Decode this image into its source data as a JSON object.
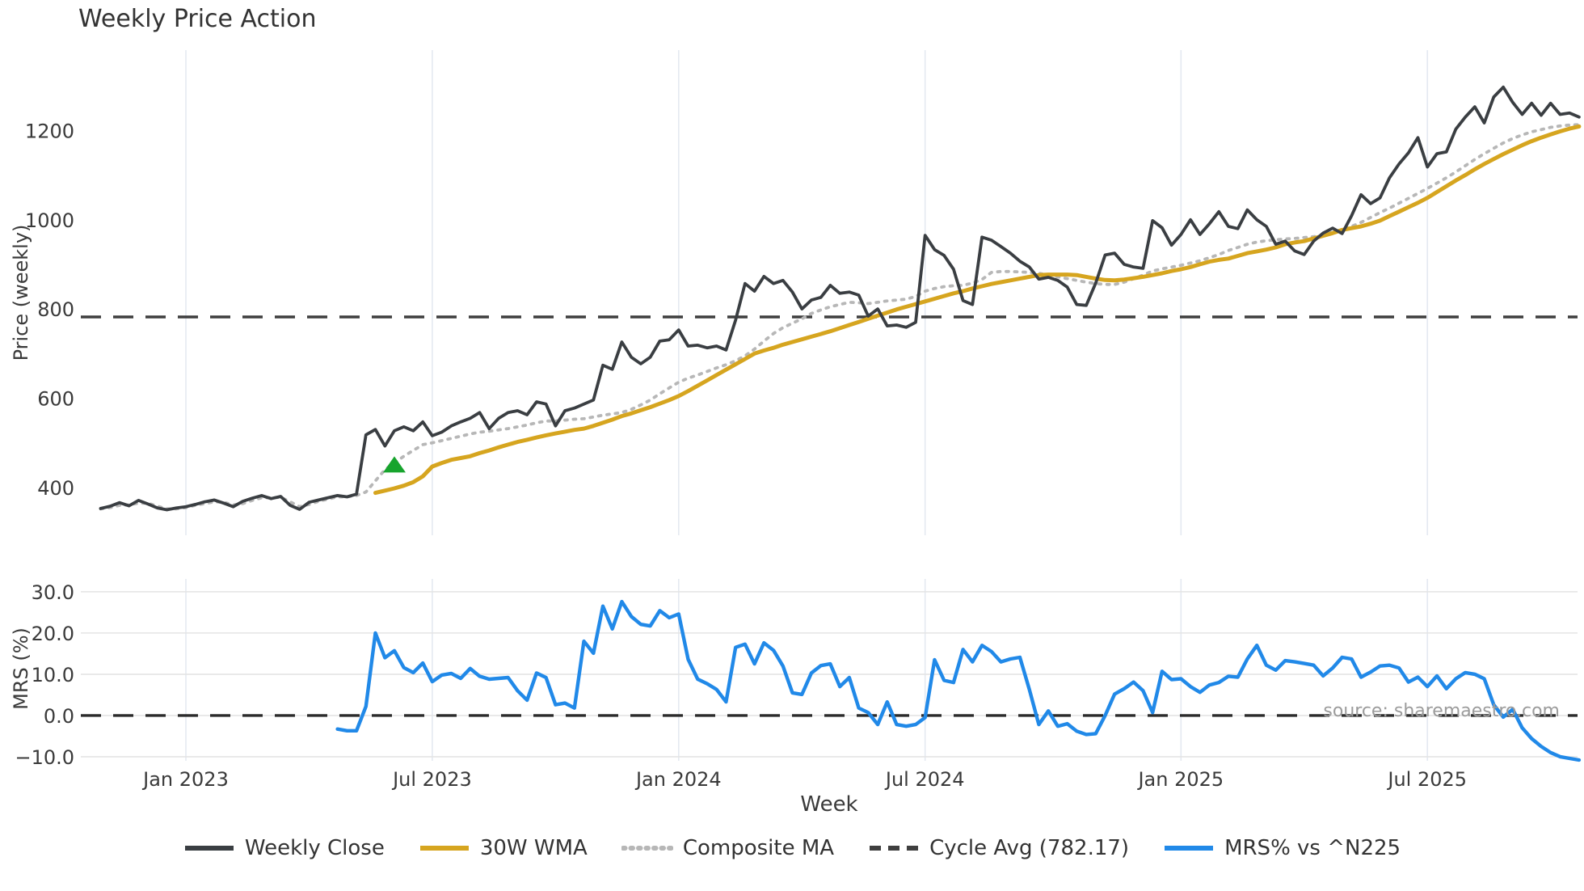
{
  "title": "Weekly Price Action",
  "source_note": "source: sharemaestro.com",
  "colors": {
    "close": "#3a3e42",
    "wma": "#d6a51f",
    "composite": "#b7b7b7",
    "cycle_avg": "#3f3f3f",
    "mrs": "#2189e8",
    "buy_marker": "#17a42d",
    "grid_vertical": "#e4e9f1",
    "grid_horizontal": "#e4e4e4",
    "tick_text": "#3a3a3a",
    "source_text": "#9b9b9b"
  },
  "chart_data": {
    "type": "line",
    "title": "Weekly Price Action",
    "x": {
      "label": "Week",
      "tick_labels": [
        "Jan 2023",
        "Jul 2023",
        "Jan 2024",
        "Jul 2024",
        "Jan 2025",
        "Jul 2025"
      ],
      "tick_weeks": [
        9,
        35,
        61,
        87,
        114,
        140
      ],
      "week_range": [
        0,
        156
      ]
    },
    "legend": [
      {
        "label": "Weekly Close",
        "color": "#3a3e42",
        "style": "solid"
      },
      {
        "label": "30W WMA",
        "color": "#d6a51f",
        "style": "solid"
      },
      {
        "label": "Composite MA",
        "color": "#b7b7b7",
        "style": "dotted"
      },
      {
        "label": "Cycle Avg (782.17)",
        "color": "#3f3f3f",
        "style": "dashed"
      },
      {
        "label": "MRS% vs ^N225",
        "color": "#2189e8",
        "style": "solid"
      }
    ],
    "panels": [
      {
        "name": "price",
        "ylabel": "Price (weekly)",
        "ytick_values": [
          400,
          600,
          800,
          1000,
          1200
        ],
        "ytick_labels": [
          "400",
          "600",
          "800",
          "1000",
          "1200"
        ],
        "ylim": [
          293,
          1380
        ],
        "grid": "vertical",
        "hline": {
          "label": "Cycle Avg (782.17)",
          "value": 782.17,
          "style": "dashed",
          "color": "#3f3f3f"
        },
        "markers": [
          {
            "name": "buy-signal",
            "shape": "triangle-up",
            "color": "#17a42d",
            "week": 31,
            "value": 450
          }
        ],
        "series": [
          {
            "name": "Weekly Close",
            "color": "#3a3e42",
            "style": "solid",
            "width": 3.8,
            "start_week": 0,
            "values": [
              353,
              358,
              366,
              359,
              371,
              363,
              354,
              350,
              354,
              357,
              362,
              368,
              372,
              365,
              357,
              369,
              376,
              382,
              375,
              380,
              360,
              351,
              367,
              372,
              377,
              382,
              379,
              385,
              518,
              530,
              493,
              527,
              536,
              527,
              547,
              516,
              524,
              538,
              547,
              555,
              568,
              532,
              555,
              568,
              572,
              563,
              592,
              587,
              538,
              572,
              578,
              587,
              596,
              674,
              665,
              726,
              692,
              677,
              692,
              728,
              731,
              753,
              717,
              719,
              713,
              717,
              708,
              775,
              857,
              840,
              873,
              857,
              864,
              838,
              800,
              820,
              826,
              853,
              835,
              838,
              831,
              784,
              800,
              762,
              764,
              759,
              770,
              965,
              933,
              920,
              889,
              819,
              810,
              961,
              954,
              940,
              925,
              907,
              894,
              867,
              871,
              864,
              849,
              810,
              808,
              858,
              921,
              925,
              900,
              894,
              891,
              998,
              982,
              943,
              967,
              1000,
              967,
              991,
              1018,
              985,
              980,
              1022,
              1000,
              985,
              945,
              952,
              930,
              922,
              952,
              970,
              981,
              969,
              1009,
              1056,
              1036,
              1049,
              1094,
              1125,
              1150,
              1184,
              1118,
              1148,
              1152,
              1203,
              1230,
              1253,
              1217,
              1275,
              1297,
              1263,
              1236,
              1261,
              1234,
              1261,
              1236,
              1239,
              1230
            ]
          },
          {
            "name": "30W WMA",
            "color": "#d6a51f",
            "style": "solid",
            "width": 5,
            "start_week": 29,
            "values": [
              388,
              393,
              398,
              404,
              412,
              425,
              447,
              455,
              462,
              466,
              470,
              477,
              483,
              490,
              496,
              502,
              507,
              512,
              517,
              521,
              525,
              529,
              532,
              538,
              545,
              552,
              560,
              566,
              573,
              580,
              588,
              596,
              605,
              616,
              628,
              640,
              652,
              664,
              676,
              688,
              700,
              707,
              713,
              720,
              726,
              732,
              738,
              744,
              750,
              757,
              764,
              771,
              778,
              785,
              792,
              799,
              805,
              811,
              817,
              823,
              829,
              835,
              840,
              846,
              851,
              856,
              860,
              864,
              868,
              872,
              876,
              877,
              877,
              877,
              876,
              872,
              868,
              865,
              864,
              866,
              869,
              872,
              876,
              880,
              885,
              889,
              894,
              900,
              906,
              910,
              913,
              919,
              925,
              929,
              933,
              938,
              945,
              949,
              952,
              958,
              964,
              970,
              977,
              981,
              985,
              991,
              998,
              1008,
              1018,
              1028,
              1038,
              1049,
              1062,
              1075,
              1088,
              1100,
              1113,
              1125,
              1136,
              1147,
              1157,
              1167,
              1176,
              1184,
              1191,
              1198,
              1204,
              1209
            ]
          },
          {
            "name": "Composite MA",
            "color": "#b7b7b7",
            "style": "dotted",
            "width": 3.8,
            "start_week": 0,
            "values": [
              352,
              355,
              360,
              361,
              365,
              365,
              358,
              352,
              352,
              355,
              360,
              364,
              368,
              367,
              361,
              364,
              371,
              377,
              377,
              378,
              368,
              357,
              362,
              369,
              374,
              379,
              379,
              382,
              390,
              415,
              440,
              455,
              470,
              483,
              496,
              500,
              505,
              510,
              515,
              520,
              524,
              526,
              529,
              532,
              536,
              540,
              545,
              549,
              549,
              551,
              553,
              554,
              558,
              562,
              565,
              568,
              575,
              585,
              596,
              610,
              623,
              636,
              645,
              652,
              660,
              668,
              675,
              684,
              695,
              710,
              728,
              745,
              758,
              768,
              778,
              790,
              798,
              805,
              810,
              815,
              814,
              812,
              815,
              818,
              820,
              822,
              828,
              840,
              846,
              850,
              852,
              853,
              858,
              866,
              882,
              884,
              884,
              883,
              882,
              880,
              876,
              872,
              868,
              864,
              860,
              857,
              855,
              855,
              860,
              868,
              876,
              885,
              890,
              894,
              898,
              903,
              908,
              915,
              922,
              931,
              938,
              945,
              950,
              953,
              955,
              957,
              958,
              960,
              962,
              965,
              972,
              978,
              985,
              994,
              1005,
              1016,
              1026,
              1037,
              1048,
              1059,
              1070,
              1082,
              1094,
              1107,
              1121,
              1135,
              1148,
              1160,
              1172,
              1182,
              1190,
              1197,
              1202,
              1207,
              1210,
              1212,
              1213
            ]
          }
        ]
      },
      {
        "name": "mrs",
        "ylabel": "MRS (%)",
        "ytick_values": [
          30,
          20,
          10,
          0,
          -10
        ],
        "ytick_labels": [
          "30.0",
          "20.0",
          "10.0",
          "0.0",
          "−10.0"
        ],
        "ylim": [
          -10.8,
          33.7
        ],
        "grid": "both",
        "hline": {
          "label": "zero-line",
          "value": 0,
          "style": "dashed",
          "color": "#2b2b2b"
        },
        "series": [
          {
            "name": "MRS% vs ^N225",
            "color": "#2189e8",
            "style": "solid",
            "width": 4.4,
            "start_week": 25,
            "values": [
              -3.3,
              -3.7,
              -3.7,
              2.2,
              20,
              14,
              15.7,
              11.6,
              10.4,
              12.7,
              8.2,
              9.8,
              10.2,
              9,
              11.4,
              9.5,
              8.8,
              9,
              9.2,
              6,
              3.7,
              10.3,
              9.2,
              2.6,
              3,
              1.8,
              18,
              15.1,
              26.5,
              21,
              27.6,
              24,
              22.1,
              21.7,
              25.4,
              23.7,
              24.6,
              13.6,
              8.8,
              7.7,
              6.3,
              3.3,
              16.5,
              17.3,
              12.5,
              17.6,
              15.8,
              12,
              5.5,
              5.1,
              10.3,
              12.1,
              12.5,
              7,
              9.2,
              1.8,
              0.7,
              -2.2,
              3.3,
              -2.2,
              -2.6,
              -2.2,
              -0.5,
              13.5,
              8.5,
              8,
              16,
              13,
              17,
              15.5,
              13,
              13.7,
              14.1,
              6.3,
              -2.2,
              1.1,
              -2.6,
              -2,
              -3.8,
              -4.6,
              -4.4,
              0,
              5.2,
              6.5,
              8.1,
              6,
              0.7,
              10.7,
              8.7,
              8.9,
              7,
              5.6,
              7.4,
              8,
              9.5,
              9.3,
              13.7,
              17,
              12.2,
              11,
              13.3,
              13,
              12.6,
              12.2,
              9.6,
              11.5,
              14.1,
              13.7,
              9.3,
              10.5,
              12,
              12.2,
              11.5,
              8.1,
              9.3,
              7,
              9.6,
              6.5,
              8.9,
              10.4,
              10,
              8.9,
              2.6,
              -0.4,
              1.5,
              -3,
              -5.6,
              -7.5,
              -9,
              -10,
              -10.4,
              -10.8
            ]
          }
        ]
      }
    ]
  }
}
